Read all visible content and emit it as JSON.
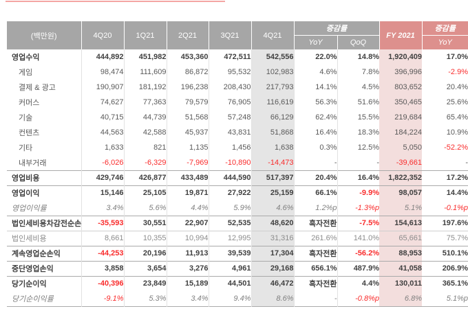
{
  "colors": {
    "header_gray": "#a6a6a6",
    "header_pink": "#dd908d",
    "column_shade_gray": "#e5e5e5",
    "column_shade_pink": "#f3dedd",
    "negative_red": "#f92b2b",
    "top_rule_pink": "#f4a5a3"
  },
  "header": {
    "unit": "(백만원)",
    "quarters": [
      "4Q20",
      "1Q21",
      "2Q21",
      "3Q21",
      "4Q21"
    ],
    "change_group": "증감률",
    "change_sub": [
      "YoY",
      "QoQ"
    ],
    "fy": "FY 2021",
    "fy_change_group": "증감률",
    "fy_change_sub": "YoY"
  },
  "rows": [
    {
      "label": "영업수익",
      "type": "section",
      "separator_above": false,
      "values": [
        "444,892",
        "451,982",
        "453,360",
        "472,511",
        "542,556",
        "22.0%",
        "14.8%",
        "1,920,409",
        "17.0%"
      ],
      "red": [
        false,
        false,
        false,
        false,
        false,
        false,
        false,
        false,
        false
      ]
    },
    {
      "label": "게임",
      "type": "sub",
      "separator_above": false,
      "values": [
        "98,474",
        "111,609",
        "86,872",
        "95,532",
        "102,983",
        "4.6%",
        "7.8%",
        "396,996",
        "-2.9%"
      ],
      "red": [
        false,
        false,
        false,
        false,
        false,
        false,
        false,
        false,
        true
      ]
    },
    {
      "label": "결제 & 광고",
      "type": "sub",
      "separator_above": false,
      "values": [
        "190,907",
        "181,192",
        "196,238",
        "208,430",
        "217,793",
        "14.1%",
        "4.5%",
        "803,652",
        "20.4%"
      ],
      "red": [
        false,
        false,
        false,
        false,
        false,
        false,
        false,
        false,
        false
      ]
    },
    {
      "label": "커머스",
      "type": "sub",
      "separator_above": false,
      "values": [
        "74,627",
        "77,363",
        "79,579",
        "76,905",
        "116,619",
        "56.3%",
        "51.6%",
        "350,465",
        "25.6%"
      ],
      "red": [
        false,
        false,
        false,
        false,
        false,
        false,
        false,
        false,
        false
      ]
    },
    {
      "label": "기술",
      "type": "sub",
      "separator_above": false,
      "values": [
        "40,715",
        "44,739",
        "51,568",
        "57,248",
        "66,129",
        "62.4%",
        "15.5%",
        "219,684",
        "65.4%"
      ],
      "red": [
        false,
        false,
        false,
        false,
        false,
        false,
        false,
        false,
        false
      ]
    },
    {
      "label": "컨텐츠",
      "type": "sub",
      "separator_above": false,
      "values": [
        "44,563",
        "42,588",
        "45,937",
        "43,831",
        "51,868",
        "16.4%",
        "18.3%",
        "184,224",
        "10.9%"
      ],
      "red": [
        false,
        false,
        false,
        false,
        false,
        false,
        false,
        false,
        false
      ]
    },
    {
      "label": "기타",
      "type": "sub",
      "separator_above": false,
      "values": [
        "1,633",
        "821",
        "1,135",
        "1,456",
        "1,638",
        "0.3%",
        "12.5%",
        "5,050",
        "-52.2%"
      ],
      "red": [
        false,
        false,
        false,
        false,
        false,
        false,
        false,
        false,
        true
      ]
    },
    {
      "label": "내부거래",
      "type": "sub",
      "separator_above": false,
      "values": [
        "-6,026",
        "-6,329",
        "-7,969",
        "-10,890",
        "-14,473",
        "-",
        "-",
        "-39,661",
        "-"
      ],
      "red": [
        true,
        true,
        true,
        true,
        true,
        false,
        false,
        true,
        false
      ]
    },
    {
      "label": "영업비용",
      "type": "section",
      "separator_above": "normal",
      "values": [
        "429,746",
        "426,877",
        "433,489",
        "444,590",
        "517,397",
        "20.4%",
        "16.4%",
        "1,822,352",
        "17.2%"
      ],
      "red": [
        false,
        false,
        false,
        false,
        false,
        false,
        false,
        false,
        false
      ]
    },
    {
      "label": "영업이익",
      "type": "section",
      "separator_above": "normal",
      "values": [
        "15,146",
        "25,105",
        "19,871",
        "27,922",
        "25,159",
        "66.1%",
        "-9.9%",
        "98,057",
        "14.4%"
      ],
      "red": [
        false,
        false,
        false,
        false,
        false,
        false,
        true,
        false,
        false
      ]
    },
    {
      "label": "영업이익률",
      "type": "ratio",
      "separator_above": false,
      "values": [
        "3.4%",
        "5.6%",
        "4.4%",
        "5.9%",
        "4.6%",
        "1.2%p",
        "-1.3%p",
        "5.1%",
        "-0.1%p"
      ],
      "red": [
        false,
        false,
        false,
        false,
        false,
        false,
        true,
        false,
        true
      ]
    },
    {
      "label": "법인세비용차감전순손익",
      "type": "section",
      "separator_above": "normal",
      "values": [
        "-35,593",
        "30,551",
        "22,907",
        "52,535",
        "48,620",
        "흑자전환",
        "-7.5%",
        "154,613",
        "197.6%"
      ],
      "red": [
        true,
        false,
        false,
        false,
        false,
        false,
        true,
        false,
        false
      ]
    },
    {
      "label": "법인세비용",
      "type": "tax",
      "separator_above": "light",
      "values": [
        "8,661",
        "10,355",
        "10,994",
        "12,995",
        "31,316",
        "261.6%",
        "141.0%",
        "65,661",
        "75.7%"
      ],
      "red": [
        false,
        false,
        false,
        false,
        false,
        false,
        false,
        false,
        false
      ]
    },
    {
      "label": "계속영업순손익",
      "type": "section",
      "separator_above": "normal",
      "values": [
        "-44,253",
        "20,196",
        "11,913",
        "39,539",
        "17,304",
        "흑자전환",
        "-56.2%",
        "88,953",
        "510.1%"
      ],
      "red": [
        true,
        false,
        false,
        false,
        false,
        false,
        true,
        false,
        false
      ]
    },
    {
      "label": "중단영업손익",
      "type": "section",
      "separator_above": "normal",
      "values": [
        "3,858",
        "3,654",
        "3,276",
        "4,961",
        "29,168",
        "656.1%",
        "487.9%",
        "41,058",
        "206.9%"
      ],
      "red": [
        false,
        false,
        false,
        false,
        false,
        false,
        false,
        false,
        false
      ]
    },
    {
      "label": "당기순이익",
      "type": "section",
      "separator_above": "normal",
      "values": [
        "-40,396",
        "23,849",
        "15,189",
        "44,501",
        "46,472",
        "흑자전환",
        "4.4%",
        "130,011",
        "365.1%"
      ],
      "red": [
        true,
        false,
        false,
        false,
        false,
        false,
        false,
        false,
        false
      ]
    },
    {
      "label": "당기순이익률",
      "type": "ratio",
      "separator_above": false,
      "values": [
        "-9.1%",
        "5.3%",
        "3.4%",
        "9.4%",
        "8.6%",
        "-",
        "-0.8%p",
        "6.8%",
        "5.1%p"
      ],
      "red": [
        true,
        false,
        false,
        false,
        false,
        false,
        true,
        false,
        false
      ]
    }
  ]
}
